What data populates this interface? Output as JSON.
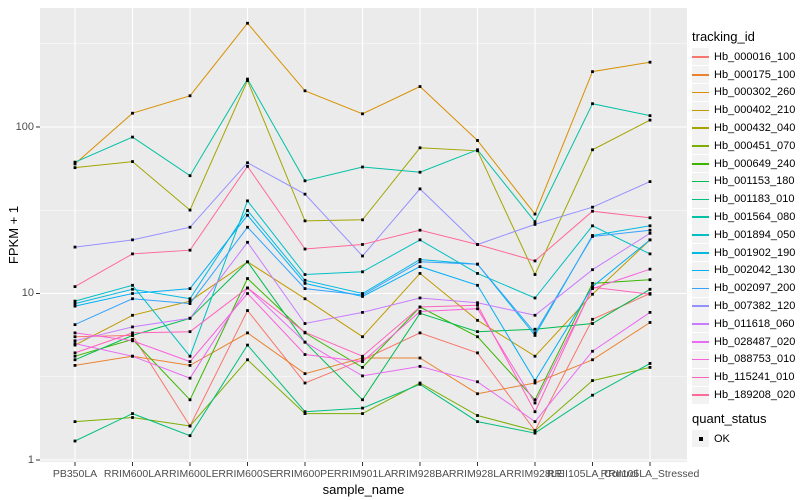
{
  "window": {
    "background": "#FFFFFF"
  },
  "panel": {
    "background": "#EBEBEB",
    "grid_color": "#FFFFFF",
    "tick_color": "#333333",
    "tick_label_color": "#4D4D4D",
    "legend_key_fill": "#F2F2F2",
    "point_color": "#000000"
  },
  "chart_data": {
    "type": "line",
    "title": "",
    "xlabel": "sample_name",
    "ylabel": "FPKM + 1",
    "y_scale": "log10",
    "y_ticks": [
      1,
      10,
      100
    ],
    "ylim": [
      1,
      500
    ],
    "grid": true,
    "legend_position": "right",
    "legend_title": "tracking_id",
    "quant_legend": {
      "title": "quant_status",
      "items": [
        "OK"
      ],
      "marker": "black-square"
    },
    "categories": [
      "PB350LA",
      "RRIM600LA",
      "RRIM600LE",
      "RRIM600SE",
      "RRIM600PE",
      "RRIM901LA",
      "RRIM928BA",
      "RRIM928LA",
      "RRIM928LE",
      "RRII105LA_Control",
      "RRII105LA_Stressed"
    ],
    "series": [
      {
        "name": "Hb_000016_100",
        "color": "#F8766D",
        "values": [
          5.5,
          5.6,
          1.6,
          7.9,
          2.9,
          4.0,
          5.8,
          4.4,
          1.5,
          7.0,
          10.0
        ]
      },
      {
        "name": "Hb_000175_100",
        "color": "#EA8331",
        "values": [
          3.7,
          4.2,
          3.7,
          5.8,
          3.3,
          4.1,
          4.1,
          2.5,
          2.9,
          4.0,
          6.7
        ]
      },
      {
        "name": "Hb_000302_260",
        "color": "#D89000",
        "values": [
          60,
          121,
          154,
          420,
          165,
          120,
          175,
          83,
          30,
          215,
          245
        ]
      },
      {
        "name": "Hb_000402_210",
        "color": "#C09B00",
        "values": [
          4.9,
          7.4,
          9.0,
          15.5,
          9.3,
          5.5,
          13.2,
          6.9,
          4.2,
          9.9,
          21.0
        ]
      },
      {
        "name": "Hb_000432_040",
        "color": "#A3A500",
        "values": [
          57,
          62,
          31.7,
          190,
          27.3,
          27.7,
          75,
          72,
          13.0,
          73,
          110
        ]
      },
      {
        "name": "Hb_000451_070",
        "color": "#7CAE00",
        "values": [
          1.7,
          1.8,
          1.6,
          4.0,
          1.9,
          1.9,
          2.9,
          1.85,
          1.5,
          3.0,
          3.6
        ]
      },
      {
        "name": "Hb_000649_240",
        "color": "#39B600",
        "values": [
          4.2,
          5.3,
          2.3,
          12.3,
          5.8,
          3.6,
          8.3,
          5.5,
          2.3,
          11.5,
          12.1
        ]
      },
      {
        "name": "Hb_001153_180",
        "color": "#00BB4E",
        "values": [
          4.0,
          5.6,
          7.1,
          15.5,
          5.1,
          2.3,
          7.6,
          5.9,
          6.1,
          6.6,
          10.6
        ]
      },
      {
        "name": "Hb_001183_010",
        "color": "#00BF7D",
        "values": [
          1.3,
          1.9,
          1.4,
          4.9,
          1.95,
          2.05,
          2.85,
          1.7,
          1.45,
          2.45,
          3.8
        ]
      },
      {
        "name": "Hb_001564_080",
        "color": "#00C1A3",
        "values": [
          61.5,
          87,
          51,
          194,
          47.5,
          57.5,
          53.5,
          73,
          27,
          138,
          117
        ]
      },
      {
        "name": "Hb_001894_050",
        "color": "#00BFC4",
        "values": [
          9.0,
          11.2,
          4.2,
          36,
          13.0,
          13.5,
          21,
          13.2,
          9.4,
          25.5,
          17.3
        ]
      },
      {
        "name": "Hb_001902_190",
        "color": "#00BAE0",
        "values": [
          8.7,
          10.6,
          9.3,
          31.5,
          12.0,
          10.0,
          16.0,
          15.0,
          5.6,
          22.3,
          25.5
        ]
      },
      {
        "name": "Hb_002042_130",
        "color": "#00B0F6",
        "values": [
          8.4,
          10.0,
          10.7,
          29.5,
          11.5,
          9.6,
          14.5,
          11.2,
          3.0,
          11.0,
          21.0
        ]
      },
      {
        "name": "Hb_002097_200",
        "color": "#35A2FF",
        "values": [
          6.5,
          9.3,
          8.7,
          25.0,
          10.7,
          9.8,
          15.5,
          15.0,
          5.8,
          22.0,
          24.0
        ]
      },
      {
        "name": "Hb_007382_120",
        "color": "#9590FF",
        "values": [
          19,
          21,
          25,
          61,
          39.5,
          16.8,
          42.5,
          19.7,
          26,
          33,
          47
        ]
      },
      {
        "name": "Hb_011618_060",
        "color": "#C77CFF",
        "values": [
          5.2,
          6.3,
          7.1,
          20.3,
          6.6,
          7.7,
          9.4,
          8.8,
          7.4,
          13.9,
          23.0
        ]
      },
      {
        "name": "Hb_028487_020",
        "color": "#E76BF3",
        "values": [
          5.0,
          4.2,
          3.1,
          10.8,
          5.1,
          3.2,
          3.65,
          2.95,
          1.7,
          4.5,
          7.7
        ]
      },
      {
        "name": "Hb_088753_010",
        "color": "#FA62DB",
        "values": [
          5.8,
          5.2,
          3.9,
          10.0,
          4.3,
          3.9,
          7.8,
          8.1,
          2.2,
          10.7,
          14.0
        ]
      },
      {
        "name": "Hb_115241_010",
        "color": "#FF62BC",
        "values": [
          4.4,
          5.8,
          5.9,
          10.8,
          5.85,
          4.2,
          8.3,
          8.5,
          1.95,
          10.9,
          9.9
        ]
      },
      {
        "name": "Hb_189208_020",
        "color": "#FF6A98",
        "values": [
          11,
          17.3,
          18.2,
          58,
          18.5,
          19.7,
          24,
          19.7,
          15.7,
          31.2,
          28.5
        ]
      }
    ]
  }
}
